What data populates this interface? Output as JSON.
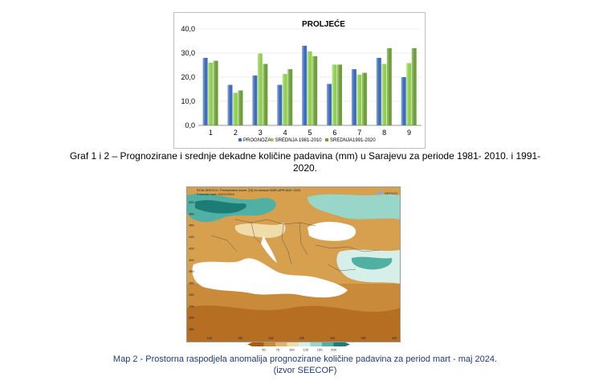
{
  "chart_data": {
    "type": "bar",
    "title": "PROLJEĆE",
    "categories": [
      "1",
      "2",
      "3",
      "4",
      "5",
      "6",
      "7",
      "8",
      "9"
    ],
    "series": [
      {
        "name": "PROGNOZA",
        "color": "#3d6cc0",
        "values": [
          28.0,
          16.8,
          20.7,
          16.8,
          33.0,
          17.2,
          23.3,
          28.0,
          20.0
        ]
      },
      {
        "name": "SREDNJA 1981-2010",
        "color": "#92d050",
        "values": [
          26.0,
          13.5,
          29.8,
          21.3,
          30.7,
          25.2,
          21.0,
          25.5,
          25.8
        ]
      },
      {
        "name": "SREDNJA1991-2020",
        "color": "#6e9f3a",
        "values": [
          26.8,
          14.5,
          25.5,
          23.3,
          28.7,
          25.2,
          21.8,
          32.0,
          32.0
        ]
      }
    ],
    "yticks": [
      "0,0",
      "10,0",
      "20,0",
      "30,0",
      "40,0"
    ],
    "ylim": [
      0,
      40
    ],
    "legend_position": "bottom"
  },
  "figure1": {
    "caption_line1": "Graf 1 i 2 – Prognozirane i srednje dekadne količine padavina (mm) u Sarajevu za periode 1981- 2010. i 1991-",
    "caption_line2": "2020."
  },
  "map": {
    "header_line1": "RCM-SEEVCC: Precipitation anom. [%] for season MAR-APR-MAY 2024",
    "header_line2": "Forecast start: 01/01/2024",
    "logo_text": "SEEVCC",
    "lat_labels": [
      "50N",
      "48N",
      "46N",
      "44N",
      "42N",
      "40N",
      "38N",
      "36N",
      "34N",
      "32N",
      "30N",
      "28N"
    ],
    "lon_labels": [
      "10E",
      "15E",
      "20E",
      "25E",
      "30E",
      "35E",
      "40E"
    ],
    "colorbar_labels": [
      "50",
      "75",
      "100",
      "125",
      "150",
      "200"
    ],
    "colorbar_colors": [
      "#a75c12",
      "#c98a3a",
      "#e2b36a",
      "#f0dcaa",
      "#d6efe8",
      "#97d6c8",
      "#4fb0a3",
      "#1b7d76"
    ],
    "caption_line1": "Map 2 - Prostorna raspodjela anomalija prognozirane količine padavina za period mart - maj 2024.",
    "caption_line2": "(izvor SEECOF)"
  }
}
